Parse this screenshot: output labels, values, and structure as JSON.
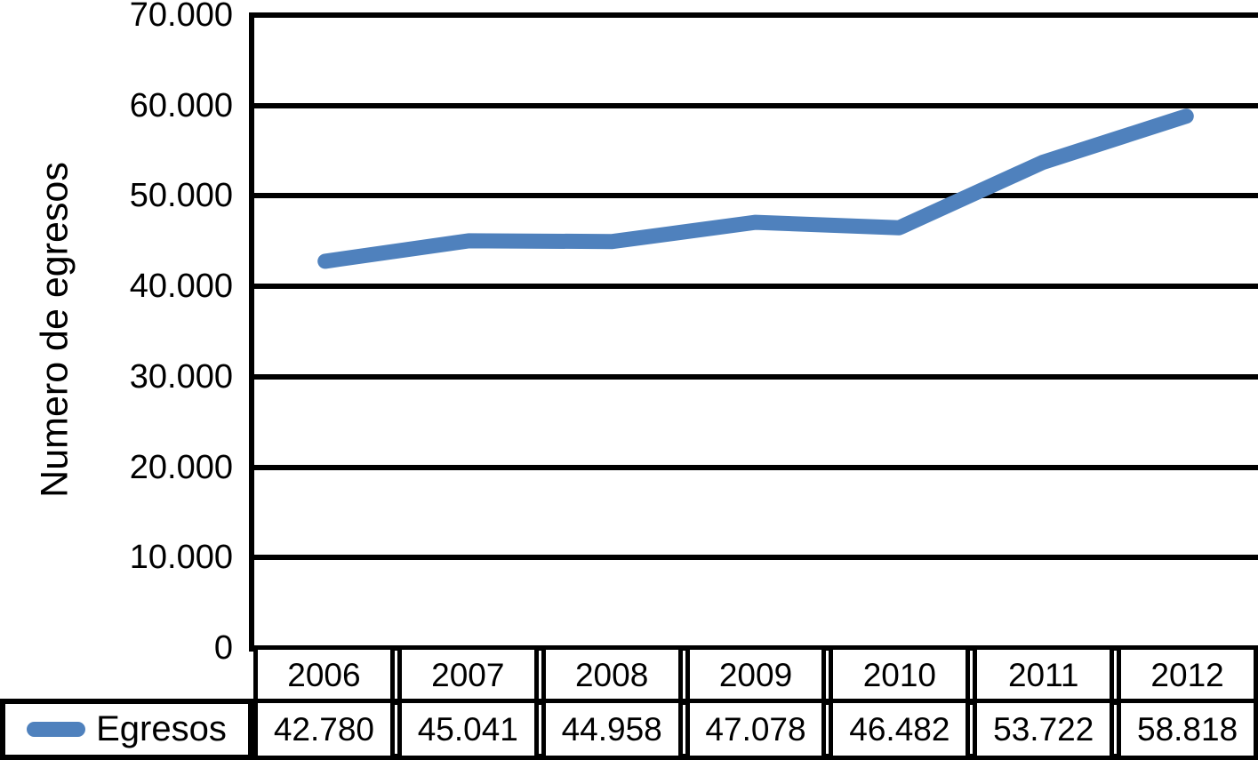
{
  "chart_data": {
    "type": "line",
    "title": "",
    "xlabel": "",
    "ylabel": "Numero de egresos",
    "categories": [
      "2006",
      "2007",
      "2008",
      "2009",
      "2010",
      "2011",
      "2012"
    ],
    "series": [
      {
        "name": "Egresos",
        "values": [
          42780,
          45041,
          44958,
          47078,
          46482,
          53722,
          58818
        ],
        "display_values": [
          "42.780",
          "45.041",
          "44.958",
          "47.078",
          "46.482",
          "53.722",
          "58.818"
        ],
        "color": "#4F81BD"
      }
    ],
    "ylim": [
      0,
      70000
    ],
    "ytick_step": 10000,
    "ytick_labels": [
      "0",
      "10.000",
      "20.000",
      "30.000",
      "40.000",
      "50.000",
      "60.000",
      "70.000"
    ],
    "grid": "horizontal-only",
    "legend_position": "table-row-left",
    "data_table_shown": true
  },
  "colors": {
    "line": "#4F81BD",
    "grid": "#000000",
    "text": "#000000",
    "background": "#FFFFFF"
  }
}
